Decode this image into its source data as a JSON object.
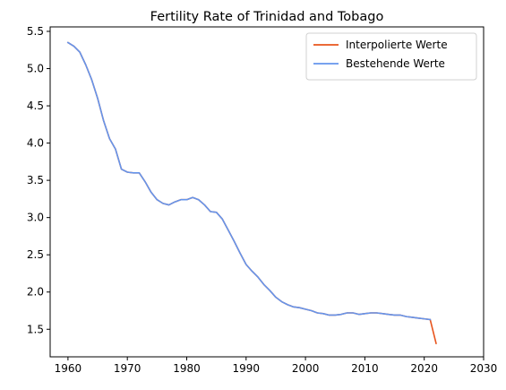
{
  "chart_data": {
    "type": "line",
    "title": "Fertility Rate of Trinidad and Tobago",
    "xlabel": "",
    "ylabel": "",
    "xlim": [
      1957,
      2030
    ],
    "ylim": [
      1.13,
      5.56
    ],
    "x_ticks": [
      1960,
      1970,
      1980,
      1990,
      2000,
      2010,
      2020,
      2030
    ],
    "y_ticks": [
      1.5,
      2.0,
      2.5,
      3.0,
      3.5,
      4.0,
      4.5,
      5.0,
      5.5
    ],
    "y_tick_labels": [
      "1.5",
      "2.0",
      "2.5",
      "3.0",
      "3.5",
      "4.0",
      "4.5",
      "5.0",
      "5.5"
    ],
    "grid": false,
    "legend_position": "top-right",
    "series": [
      {
        "name": "Interpolierte Werte",
        "color": "#e8541c",
        "x": [
          1960,
          1961,
          1962,
          1963,
          1964,
          1965,
          1966,
          1967,
          1968,
          1969,
          1970,
          1971,
          1972,
          1973,
          1974,
          1975,
          1976,
          1977,
          1978,
          1979,
          1980,
          1981,
          1982,
          1983,
          1984,
          1985,
          1986,
          1987,
          1988,
          1989,
          1990,
          1991,
          1992,
          1993,
          1994,
          1995,
          1996,
          1997,
          1998,
          1999,
          2000,
          2001,
          2002,
          2003,
          2004,
          2005,
          2006,
          2007,
          2008,
          2009,
          2010,
          2011,
          2012,
          2013,
          2014,
          2015,
          2016,
          2017,
          2018,
          2019,
          2020,
          2021,
          2022
        ],
        "y": [
          5.35,
          5.3,
          5.22,
          5.05,
          4.85,
          4.6,
          4.3,
          4.06,
          3.92,
          3.65,
          3.61,
          3.6,
          3.6,
          3.48,
          3.34,
          3.24,
          3.19,
          3.17,
          3.21,
          3.24,
          3.24,
          3.27,
          3.24,
          3.17,
          3.08,
          3.07,
          2.98,
          2.83,
          2.68,
          2.52,
          2.37,
          2.28,
          2.2,
          2.1,
          2.02,
          1.93,
          1.87,
          1.83,
          1.8,
          1.79,
          1.77,
          1.75,
          1.72,
          1.71,
          1.69,
          1.69,
          1.7,
          1.72,
          1.72,
          1.7,
          1.71,
          1.72,
          1.72,
          1.71,
          1.7,
          1.69,
          1.69,
          1.67,
          1.66,
          1.65,
          1.64,
          1.63,
          1.31
        ]
      },
      {
        "name": "Bestehende Werte",
        "color": "#6495ed",
        "x": [
          1960,
          1961,
          1962,
          1963,
          1964,
          1965,
          1966,
          1967,
          1968,
          1969,
          1970,
          1971,
          1972,
          1973,
          1974,
          1975,
          1976,
          1977,
          1978,
          1979,
          1980,
          1981,
          1982,
          1983,
          1984,
          1985,
          1986,
          1987,
          1988,
          1989,
          1990,
          1991,
          1992,
          1993,
          1994,
          1995,
          1996,
          1997,
          1998,
          1999,
          2000,
          2001,
          2002,
          2003,
          2004,
          2005,
          2006,
          2007,
          2008,
          2009,
          2010,
          2011,
          2012,
          2013,
          2014,
          2015,
          2016,
          2017,
          2018,
          2019,
          2020,
          2021
        ],
        "y": [
          5.35,
          5.3,
          5.22,
          5.05,
          4.85,
          4.6,
          4.3,
          4.06,
          3.92,
          3.65,
          3.61,
          3.6,
          3.6,
          3.48,
          3.34,
          3.24,
          3.19,
          3.17,
          3.21,
          3.24,
          3.24,
          3.27,
          3.24,
          3.17,
          3.08,
          3.07,
          2.98,
          2.83,
          2.68,
          2.52,
          2.37,
          2.28,
          2.2,
          2.1,
          2.02,
          1.93,
          1.87,
          1.83,
          1.8,
          1.79,
          1.77,
          1.75,
          1.72,
          1.71,
          1.69,
          1.69,
          1.7,
          1.72,
          1.72,
          1.7,
          1.71,
          1.72,
          1.72,
          1.71,
          1.7,
          1.69,
          1.69,
          1.67,
          1.66,
          1.65,
          1.64,
          1.63
        ]
      }
    ]
  }
}
